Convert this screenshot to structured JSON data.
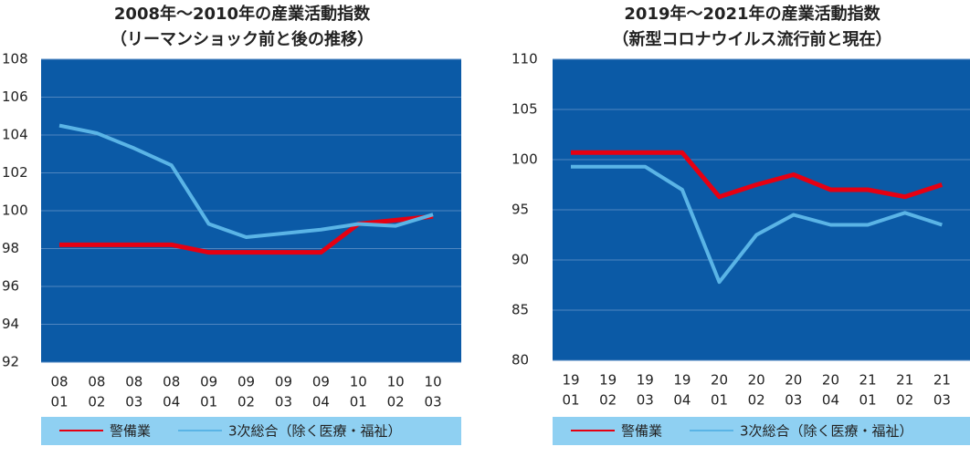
{
  "chart_data": [
    {
      "type": "line",
      "title": [
        "2008年～2010年の産業活動指数",
        "（リーマンショック前と後の推移）"
      ],
      "categories": [
        [
          "08",
          "01"
        ],
        [
          "08",
          "02"
        ],
        [
          "08",
          "03"
        ],
        [
          "08",
          "04"
        ],
        [
          "09",
          "01"
        ],
        [
          "09",
          "02"
        ],
        [
          "09",
          "03"
        ],
        [
          "09",
          "04"
        ],
        [
          "10",
          "01"
        ],
        [
          "10",
          "02"
        ],
        [
          "10",
          "03"
        ]
      ],
      "ylim": [
        92,
        108
      ],
      "yticks": [
        92,
        94,
        96,
        98,
        100,
        102,
        104,
        106,
        108
      ],
      "grid": true,
      "series": [
        {
          "name": "警備業",
          "color": "#e60012",
          "values": [
            98.2,
            98.2,
            98.2,
            98.2,
            97.8,
            97.8,
            97.8,
            97.8,
            99.3,
            99.5,
            99.7
          ]
        },
        {
          "name": "3次総合（除く医療・福祉）",
          "color": "#5ab4e6",
          "values": [
            104.5,
            104.1,
            103.3,
            102.4,
            99.3,
            98.6,
            98.8,
            99.0,
            99.3,
            99.2,
            99.8
          ]
        }
      ]
    },
    {
      "type": "line",
      "title": [
        "2019年～2021年の産業活動指数",
        "（新型コロナウイルス流行前と現在）"
      ],
      "categories": [
        [
          "19",
          "01"
        ],
        [
          "19",
          "02"
        ],
        [
          "19",
          "03"
        ],
        [
          "19",
          "04"
        ],
        [
          "20",
          "01"
        ],
        [
          "20",
          "02"
        ],
        [
          "20",
          "03"
        ],
        [
          "20",
          "04"
        ],
        [
          "21",
          "01"
        ],
        [
          "21",
          "02"
        ],
        [
          "21",
          "03"
        ]
      ],
      "ylim": [
        80,
        110
      ],
      "yticks": [
        80,
        85,
        90,
        95,
        100,
        105,
        110
      ],
      "grid": true,
      "series": [
        {
          "name": "警備業",
          "color": "#e60012",
          "values": [
            100.7,
            100.7,
            100.7,
            100.7,
            96.3,
            97.5,
            98.5,
            97.0,
            97.0,
            96.3,
            97.5
          ]
        },
        {
          "name": "3次総合（除く医療・福祉）",
          "color": "#5ab4e6",
          "values": [
            99.3,
            99.3,
            99.3,
            97.0,
            87.8,
            92.5,
            94.5,
            93.5,
            93.5,
            94.7,
            93.5
          ]
        }
      ]
    }
  ]
}
